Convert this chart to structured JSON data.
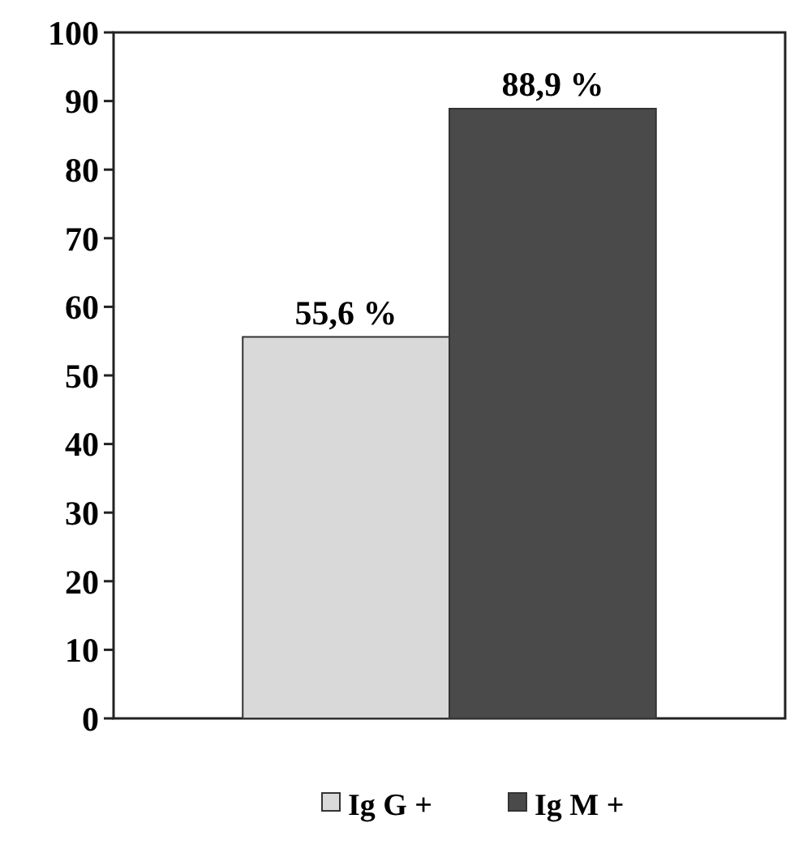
{
  "chart_data": {
    "type": "bar",
    "categories": [
      null
    ],
    "series": [
      {
        "name": "Ig G +",
        "color": "#d9d9d9",
        "values": [
          55.6
        ],
        "value_labels": [
          "55,6 %"
        ]
      },
      {
        "name": "Ig M +",
        "color": "#4a4a4a",
        "values": [
          88.9
        ],
        "value_labels": [
          "88,9 %"
        ]
      }
    ],
    "ylim": [
      0,
      100
    ],
    "yticks": [
      0,
      10,
      20,
      30,
      40,
      50,
      60,
      70,
      80,
      90,
      100
    ],
    "grid": false,
    "legend": "bottom"
  }
}
